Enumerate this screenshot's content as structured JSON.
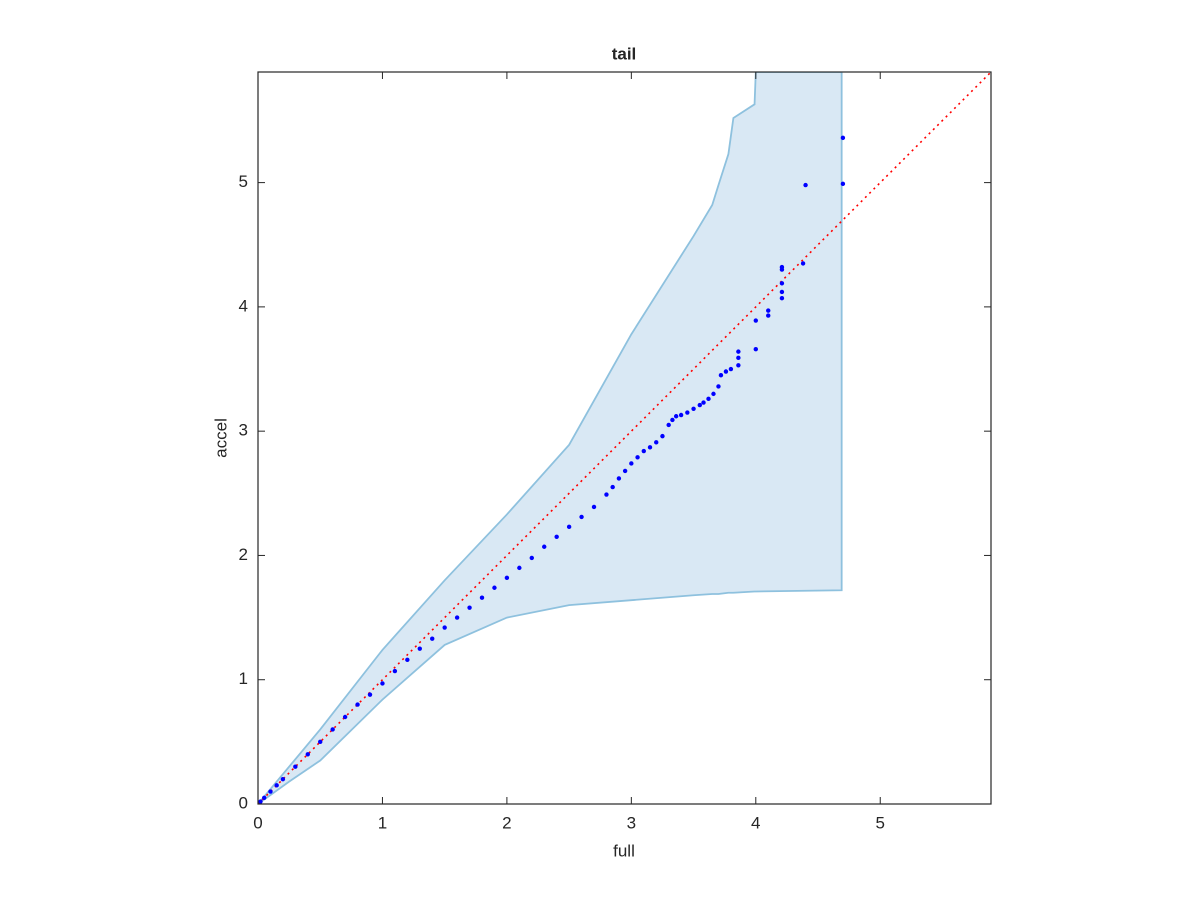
{
  "chart_data": {
    "type": "scatter",
    "title": "tail",
    "x_label": "full",
    "y_label": "accel",
    "xlim": [
      0,
      5.89
    ],
    "ylim": [
      0,
      5.89
    ],
    "xticks": [
      0,
      1,
      2,
      3,
      4,
      5
    ],
    "yticks": [
      0,
      1,
      2,
      3,
      4,
      5
    ],
    "points": {
      "color": "#0000ff",
      "x": [
        0.02,
        0.05,
        0.1,
        0.15,
        0.2,
        0.3,
        0.4,
        0.5,
        0.6,
        0.7,
        0.8,
        0.9,
        1.0,
        1.1,
        1.2,
        1.3,
        1.4,
        1.5,
        1.6,
        1.7,
        1.8,
        1.9,
        2.0,
        2.1,
        2.2,
        2.3,
        2.4,
        2.5,
        2.6,
        2.7,
        2.8,
        2.85,
        2.9,
        2.95,
        3.0,
        3.05,
        3.1,
        3.15,
        3.2,
        3.25,
        3.3,
        3.33,
        3.36,
        3.4,
        3.45,
        3.5,
        3.55,
        3.58,
        3.62,
        3.66,
        3.7,
        3.72,
        3.76,
        3.8,
        3.86,
        3.86,
        3.86,
        4.0,
        4.0,
        4.1,
        4.1,
        4.21,
        4.21,
        4.21,
        4.21,
        4.21,
        4.38,
        4.4,
        4.7,
        4.7
      ],
      "y": [
        0.02,
        0.05,
        0.1,
        0.15,
        0.2,
        0.3,
        0.4,
        0.5,
        0.6,
        0.7,
        0.8,
        0.88,
        0.97,
        1.07,
        1.16,
        1.25,
        1.33,
        1.42,
        1.5,
        1.58,
        1.66,
        1.74,
        1.82,
        1.9,
        1.98,
        2.07,
        2.15,
        2.23,
        2.31,
        2.39,
        2.49,
        2.55,
        2.62,
        2.68,
        2.74,
        2.79,
        2.84,
        2.87,
        2.91,
        2.96,
        3.05,
        3.09,
        3.12,
        3.13,
        3.15,
        3.18,
        3.21,
        3.23,
        3.26,
        3.3,
        3.36,
        3.45,
        3.48,
        3.5,
        3.53,
        3.59,
        3.64,
        3.66,
        3.89,
        3.93,
        3.97,
        4.07,
        4.12,
        4.19,
        4.3,
        4.32,
        4.35,
        4.98,
        4.99,
        5.36
      ]
    },
    "reference_line": {
      "color": "#ff0000",
      "x": [
        0,
        5.89
      ],
      "y": [
        0,
        5.89
      ]
    },
    "band": {
      "fill": "#d9e8f4",
      "color": "#8ec1de",
      "x": [
        0,
        0.25,
        0.5,
        1.0,
        1.5,
        2.0,
        2.5,
        3.0,
        3.5,
        3.65,
        3.7,
        3.78,
        3.82,
        3.99,
        4.0,
        4.69
      ],
      "upper": [
        0,
        0.3,
        0.6,
        1.24,
        1.8,
        2.33,
        2.89,
        3.78,
        4.57,
        4.82,
        4.98,
        5.23,
        5.52,
        5.63,
        5.89,
        5.89
      ],
      "lower": [
        0,
        0.18,
        0.35,
        0.84,
        1.28,
        1.5,
        1.6,
        1.64,
        1.68,
        1.69,
        1.69,
        1.7,
        1.7,
        1.71,
        1.71,
        1.72
      ]
    }
  }
}
